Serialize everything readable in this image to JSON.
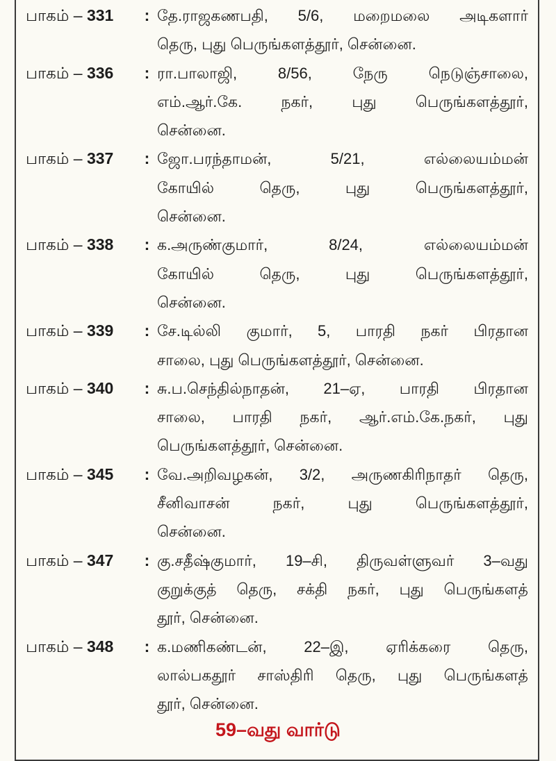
{
  "entries": [
    {
      "prefix": "பாகம் –",
      "number": "331",
      "colon": ":",
      "lines": [
        "தே.ராஜகணபதி, 5/6, மறைமலை அடிகளார்",
        "தெரு, புது பெருங்களத்தூர், சென்னை."
      ]
    },
    {
      "prefix": "பாகம் –",
      "number": "336",
      "colon": ":",
      "lines": [
        "ரா.பாலாஜி, 8/56, நேரு நெடுஞ்சாலை,",
        "எம்.ஆர்.கே. நகர், புது பெருங்களத்தூர்,",
        "சென்னை."
      ]
    },
    {
      "prefix": "பாகம் –",
      "number": "337",
      "colon": ":",
      "lines": [
        "ஜோ.பரந்தாமன், 5/21, எல்லையம்மன்",
        "கோயில் தெரு, புது பெருங்களத்தூர்,",
        "சென்னை."
      ]
    },
    {
      "prefix": "பாகம் –",
      "number": "338",
      "colon": ":",
      "lines": [
        "க.அருண்குமார், 8/24, எல்லையம்மன்",
        "கோயில் தெரு, புது பெருங்களத்தூர்,",
        "சென்னை."
      ]
    },
    {
      "prefix": "பாகம் –",
      "number": "339",
      "colon": ":",
      "lines": [
        "சே.டில்லி குமார், 5, பாரதி நகர் பிரதான",
        "சாலை, புது பெருங்களத்தூர், சென்னை."
      ]
    },
    {
      "prefix": "பாகம் –",
      "number": "340",
      "colon": ":",
      "lines": [
        "சு.ப.செந்தில்நாதன், 21–ஏ, பாரதி பிரதான",
        "சாலை, பாரதி நகர், ஆர்.எம்.கே.நகர், புது",
        "பெருங்களத்தூர், சென்னை."
      ]
    },
    {
      "prefix": "பாகம் –",
      "number": "345",
      "colon": ":",
      "lines": [
        "வே.அறிவழகன், 3/2, அருணகிரிநாதர் தெரு,",
        "சீனிவாசன் நகர், புது பெருங்களத்தூர்,",
        "சென்னை."
      ]
    },
    {
      "prefix": "பாகம் –",
      "number": "347",
      "colon": ":",
      "lines": [
        "கு.சதீஷ்குமார், 19–சி, திருவள்ளுவர் 3–வது",
        "குறுக்குத் தெரு, சக்தி நகர், புது பெருங்களத்",
        "தூர், சென்னை."
      ]
    },
    {
      "prefix": "பாகம் –",
      "number": "348",
      "colon": ":",
      "lines": [
        "க.மணிகண்டன், 22–இ, ஏரிக்கரை தெரு,",
        "லால்பகதூர் சாஸ்திரி தெரு, புது பெருங்களத்",
        "தூர், சென்னை."
      ]
    }
  ],
  "heading": "59–வது வார்டு",
  "colors": {
    "heading": "#c4161c",
    "background": "#fbfaf4",
    "border": "#3a3a3a"
  }
}
